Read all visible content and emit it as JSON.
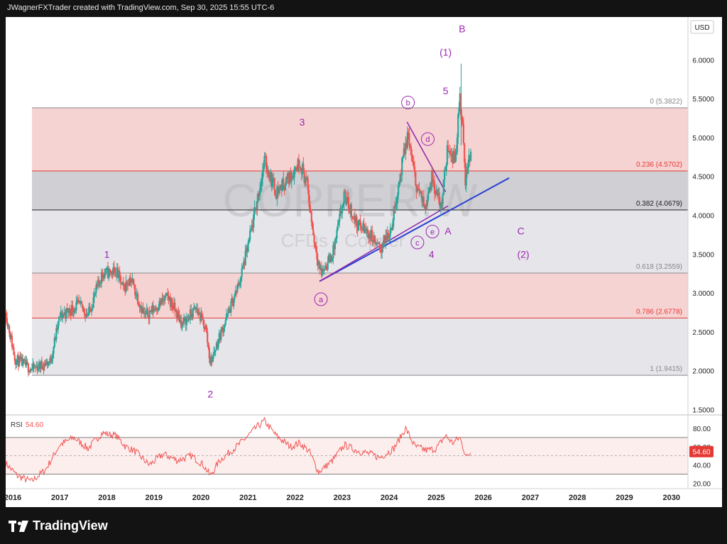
{
  "header": {
    "attribution": "JWagnerFXTrader created with TradingView.com, Sep 30, 2025 15:55 UTC-6"
  },
  "brand": {
    "name": "TradingView"
  },
  "watermark": {
    "symbol": "COPPER!W",
    "subtitle": "CFDs · Copper"
  },
  "chart_data": {
    "type": "candlestick",
    "currency": "USD",
    "price_range": [
      1.45,
      6.55
    ],
    "y_ticks": [
      "6.0000",
      "5.5000",
      "5.0000",
      "4.5000",
      "4.0000",
      "3.5000",
      "3.0000",
      "2.5000",
      "2.0000",
      "1.5000"
    ],
    "x_ticks": [
      "2016",
      "2017",
      "2018",
      "2019",
      "2020",
      "2021",
      "2022",
      "2023",
      "2024",
      "2025",
      "2026",
      "2027",
      "2028",
      "2029",
      "2030"
    ],
    "x_range": [
      2015.85,
      2030.35
    ],
    "fib_levels": [
      {
        "ratio": "0",
        "value": 5.3822,
        "label": "0 (5.3822)",
        "color": "#888888"
      },
      {
        "ratio": "0.236",
        "value": 4.5702,
        "label": "0.236 (4.5702)",
        "color": "#e53935"
      },
      {
        "ratio": "0.382",
        "value": 4.0679,
        "label": "0.382 (4.0679)",
        "color": "#222222"
      },
      {
        "ratio": "0.618",
        "value": 3.2559,
        "label": "0.618 (3.2559)",
        "color": "#888888"
      },
      {
        "ratio": "0.786",
        "value": 2.6778,
        "label": "0.786 (2.6778)",
        "color": "#e53935"
      },
      {
        "ratio": "1",
        "value": 1.9415,
        "label": "1 (1.9415)",
        "color": "#888888"
      }
    ],
    "fib_zone_colors": [
      "#f6d3d3",
      "#cfcfd4",
      "#e6e6ea",
      "#f6d3d3",
      "#e6e6ea"
    ],
    "colors": {
      "up": "#26a69a",
      "down": "#ef5350",
      "wave_label": "#9c27b0",
      "trend_blue": "#2b3fd1",
      "trend_purple": "#8e24aa",
      "rsi": "#ef5350"
    },
    "price_path": [
      [
        2015.85,
        2.75
      ],
      [
        2016.05,
        2.15
      ],
      [
        2016.4,
        2.02
      ],
      [
        2016.8,
        2.12
      ],
      [
        2017.0,
        2.7
      ],
      [
        2017.4,
        2.85
      ],
      [
        2017.6,
        2.72
      ],
      [
        2017.9,
        3.25
      ],
      [
        2018.2,
        3.28
      ],
      [
        2018.35,
        3.05
      ],
      [
        2018.5,
        3.2
      ],
      [
        2018.8,
        2.7
      ],
      [
        2019.1,
        2.85
      ],
      [
        2019.3,
        2.95
      ],
      [
        2019.6,
        2.6
      ],
      [
        2019.9,
        2.8
      ],
      [
        2020.1,
        2.55
      ],
      [
        2020.2,
        2.1
      ],
      [
        2020.4,
        2.45
      ],
      [
        2020.8,
        3.1
      ],
      [
        2021.0,
        3.6
      ],
      [
        2021.2,
        4.2
      ],
      [
        2021.35,
        4.7
      ],
      [
        2021.6,
        4.3
      ],
      [
        2021.9,
        4.5
      ],
      [
        2022.1,
        4.7
      ],
      [
        2022.25,
        4.4
      ],
      [
        2022.4,
        3.7
      ],
      [
        2022.55,
        3.25
      ],
      [
        2022.8,
        3.5
      ],
      [
        2023.05,
        4.25
      ],
      [
        2023.3,
        3.9
      ],
      [
        2023.6,
        3.75
      ],
      [
        2023.8,
        3.55
      ],
      [
        2024.05,
        3.85
      ],
      [
        2024.2,
        4.4
      ],
      [
        2024.4,
        5.05
      ],
      [
        2024.55,
        4.45
      ],
      [
        2024.75,
        4.1
      ],
      [
        2024.9,
        4.5
      ],
      [
        2025.1,
        4.1
      ],
      [
        2025.25,
        4.9
      ],
      [
        2025.4,
        4.7
      ],
      [
        2025.5,
        5.5
      ],
      [
        2025.55,
        5.2
      ],
      [
        2025.62,
        4.45
      ],
      [
        2025.75,
        4.9
      ]
    ],
    "wave_labels": [
      {
        "text": "1",
        "x": 2018.0,
        "y": 3.5
      },
      {
        "text": "2",
        "x": 2020.2,
        "y": 1.7
      },
      {
        "text": "3",
        "x": 2022.15,
        "y": 5.2
      },
      {
        "text": "a",
        "x": 2022.55,
        "y": 2.92,
        "circled": true
      },
      {
        "text": "b",
        "x": 2024.4,
        "y": 5.45,
        "circled": true
      },
      {
        "text": "c",
        "x": 2024.6,
        "y": 3.65,
        "circled": true
      },
      {
        "text": "d",
        "x": 2024.82,
        "y": 4.98,
        "circled": true
      },
      {
        "text": "e",
        "x": 2024.92,
        "y": 3.79,
        "circled": true
      },
      {
        "text": "4",
        "x": 2024.9,
        "y": 3.5
      },
      {
        "text": "5",
        "x": 2025.2,
        "y": 5.6
      },
      {
        "text": "(1)",
        "x": 2025.2,
        "y": 6.1
      },
      {
        "text": "A",
        "x": 2025.25,
        "y": 3.8
      },
      {
        "text": "B",
        "x": 2025.55,
        "y": 6.4
      },
      {
        "text": "C",
        "x": 2026.8,
        "y": 3.8
      },
      {
        "text": "(2)",
        "x": 2026.85,
        "y": 3.5
      }
    ],
    "rsi": {
      "label": "RSI",
      "value_label": "54.60",
      "current": 54.6,
      "range": [
        14,
        94
      ],
      "ticks": [
        "80.00",
        "60.00",
        "40.00",
        "20.00"
      ],
      "bands": [
        70,
        30
      ],
      "mid": 50,
      "path": [
        [
          2015.85,
          42
        ],
        [
          2016.1,
          28
        ],
        [
          2016.4,
          22
        ],
        [
          2016.7,
          35
        ],
        [
          2017.0,
          62
        ],
        [
          2017.3,
          70
        ],
        [
          2017.6,
          58
        ],
        [
          2017.9,
          75
        ],
        [
          2018.2,
          72
        ],
        [
          2018.4,
          60
        ],
        [
          2018.6,
          55
        ],
        [
          2018.9,
          40
        ],
        [
          2019.2,
          52
        ],
        [
          2019.5,
          45
        ],
        [
          2019.8,
          50
        ],
        [
          2020.05,
          40
        ],
        [
          2020.2,
          28
        ],
        [
          2020.4,
          45
        ],
        [
          2020.8,
          62
        ],
        [
          2021.0,
          72
        ],
        [
          2021.2,
          82
        ],
        [
          2021.35,
          88
        ],
        [
          2021.6,
          72
        ],
        [
          2021.9,
          60
        ],
        [
          2022.1,
          64
        ],
        [
          2022.3,
          55
        ],
        [
          2022.5,
          32
        ],
        [
          2022.8,
          45
        ],
        [
          2023.05,
          62
        ],
        [
          2023.3,
          56
        ],
        [
          2023.6,
          52
        ],
        [
          2023.8,
          48
        ],
        [
          2024.1,
          58
        ],
        [
          2024.35,
          80
        ],
        [
          2024.55,
          60
        ],
        [
          2024.8,
          56
        ],
        [
          2025.0,
          58
        ],
        [
          2025.2,
          72
        ],
        [
          2025.35,
          64
        ],
        [
          2025.5,
          70
        ],
        [
          2025.58,
          58
        ],
        [
          2025.65,
          48
        ],
        [
          2025.75,
          55
        ]
      ]
    }
  }
}
